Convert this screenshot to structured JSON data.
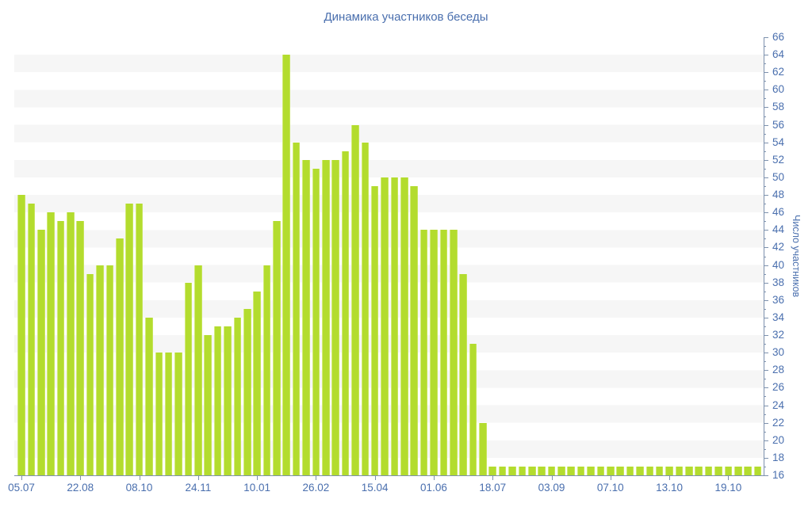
{
  "chart_data": {
    "type": "bar",
    "title": "Динамика участников беседы",
    "xlabel": "",
    "ylabel": "Число участников",
    "ylim": [
      16,
      66
    ],
    "y_tick_step": 2,
    "y_ticks": [
      16,
      18,
      20,
      22,
      24,
      26,
      28,
      30,
      32,
      34,
      36,
      38,
      40,
      42,
      44,
      46,
      48,
      50,
      52,
      54,
      56,
      58,
      60,
      62,
      64,
      66
    ],
    "x_tick_labels": [
      "05.07",
      "22.08",
      "08.10",
      "24.11",
      "10.01",
      "26.02",
      "15.04",
      "01.06",
      "18.07",
      "03.09",
      "07.10",
      "13.10",
      "19.10"
    ],
    "bars_per_tick_interval": 6,
    "legend": "none",
    "grid": "horizontal-bands-every-2-units",
    "values": [
      48,
      47,
      44,
      46,
      45,
      46,
      45,
      39,
      40,
      40,
      43,
      47,
      47,
      34,
      30,
      30,
      30,
      38,
      40,
      32,
      33,
      33,
      34,
      35,
      37,
      40,
      45,
      64,
      54,
      52,
      51,
      52,
      52,
      53,
      56,
      54,
      49,
      50,
      50,
      50,
      49,
      44,
      44,
      44,
      44,
      39,
      31,
      22,
      17,
      17,
      17,
      17,
      17,
      17,
      17,
      17,
      17,
      17,
      17,
      17,
      17,
      17,
      17,
      17,
      17,
      17,
      17,
      17,
      17,
      17,
      17,
      17,
      17,
      17,
      17,
      17
    ],
    "colors": {
      "bar_fill": "#b3dc2e",
      "bar_edge_highlight": "#d2ea78",
      "band_gray": "#f6f6f6",
      "band_white": "#ffffff",
      "axis_line": "#7d91ad",
      "label_text": "#4a6fae",
      "title_text": "#4a6fae",
      "background": "#ffffff"
    }
  }
}
